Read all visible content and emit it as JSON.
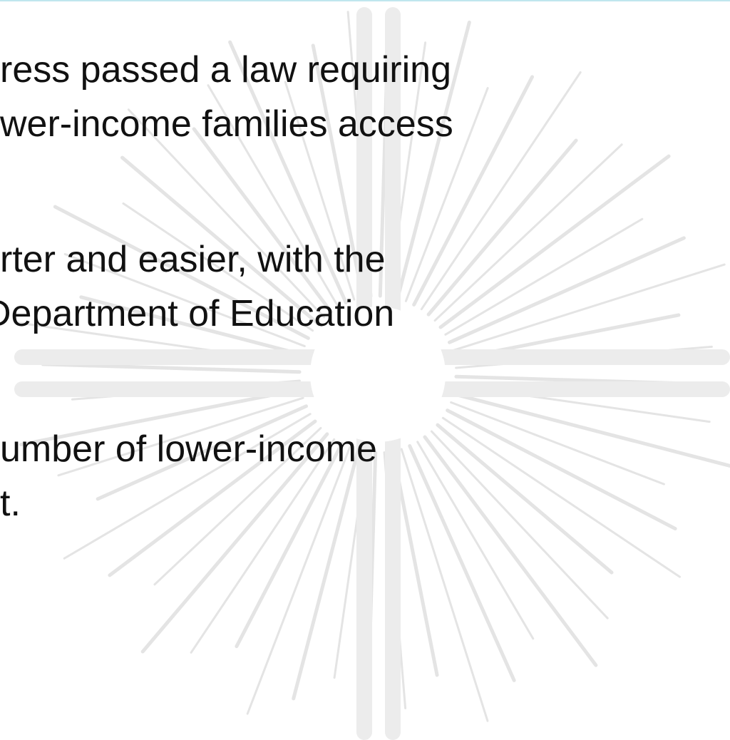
{
  "lines": [
    "ress passed a law requiring",
    "wer-income families access",
    "rter and easier, with the",
    "Department of Education",
    "umber of lower-income",
    "t."
  ]
}
